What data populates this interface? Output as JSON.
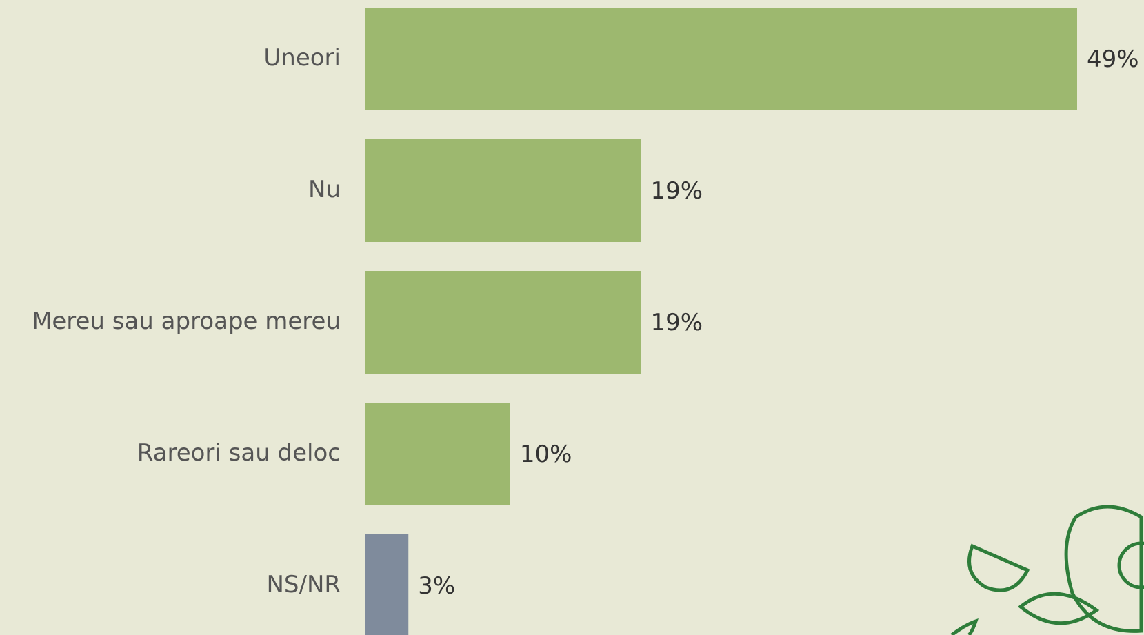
{
  "chart_data": {
    "type": "hbar",
    "categories": [
      "Uneori",
      "Nu",
      "Mereu sau aproape mereu",
      "Rareori sau deloc",
      "NS/NR"
    ],
    "values": [
      49,
      19,
      19,
      10,
      3
    ],
    "value_labels": [
      "49%",
      "19%",
      "19%",
      "10%",
      "3%"
    ],
    "colors": [
      "#9db86f",
      "#9db86f",
      "#9db86f",
      "#9db86f",
      "#7f8b9c"
    ]
  }
}
